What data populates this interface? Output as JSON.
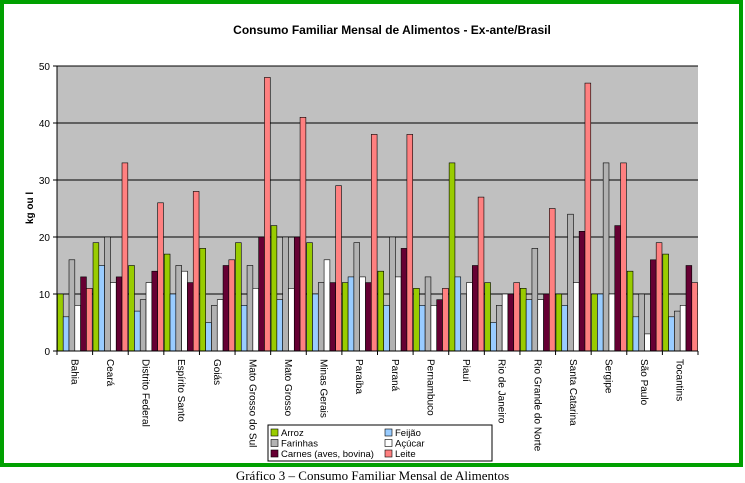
{
  "caption": "Gráfico 3 – Consumo Familiar Mensal de Alimentos",
  "colors": {
    "outer_border": "#00a000",
    "plot_bg": "#c0c0c0",
    "chart_bg": "#ffffff",
    "legend_bg": "#ffffff"
  },
  "chart_data": {
    "type": "bar",
    "title": "Consumo Familiar Mensal de Alimentos - Ex-ante/Brasil",
    "xlabel": "",
    "ylabel": "kg ou l",
    "ylim": [
      0,
      50
    ],
    "yticks": [
      0,
      10,
      20,
      30,
      40,
      50
    ],
    "grid": true,
    "legend_position": "bottom-center",
    "categories": [
      "Bahia",
      "Ceará",
      "Distrito Federal",
      "Espírito Santo",
      "Goiás",
      "Mato Grosso do Sul",
      "Mato Grosso",
      "Minas Gerais",
      "Paraíba",
      "Paraná",
      "Pernambuco",
      "Piauí",
      "Rio de Janeiro",
      "Rio Grande do Norte",
      "Santa Catarina",
      "Sergipe",
      "São Paulo",
      "Tocantins"
    ],
    "series": [
      {
        "name": "Arroz",
        "color": "#99cc00",
        "values": [
          10,
          19,
          15,
          17,
          18,
          19,
          22,
          19,
          12,
          14,
          11,
          33,
          12,
          11,
          10,
          10,
          14,
          17
        ]
      },
      {
        "name": "Feijão",
        "color": "#99ccff",
        "values": [
          6,
          15,
          7,
          10,
          5,
          8,
          9,
          10,
          13,
          8,
          8,
          13,
          5,
          9,
          8,
          10,
          6,
          6
        ]
      },
      {
        "name": "Farinhas",
        "color": "#b2b2b2",
        "values": [
          16,
          20,
          9,
          15,
          8,
          15,
          20,
          12,
          19,
          20,
          13,
          10,
          8,
          18,
          24,
          33,
          10,
          7
        ]
      },
      {
        "name": "Açúcar",
        "color": "#ffffff",
        "values": [
          8,
          12,
          12,
          14,
          9,
          11,
          11,
          16,
          13,
          13,
          8,
          12,
          10,
          9,
          12,
          10,
          3,
          8
        ]
      },
      {
        "name": "Carnes (aves, bovina)",
        "color": "#660033",
        "values": [
          13,
          13,
          14,
          12,
          15,
          20,
          20,
          12,
          12,
          18,
          9,
          15,
          10,
          10,
          21,
          22,
          16,
          15
        ]
      },
      {
        "name": "Leite",
        "color": "#ff8080",
        "values": [
          11,
          33,
          26,
          28,
          16,
          48,
          41,
          29,
          38,
          38,
          11,
          27,
          12,
          25,
          47,
          33,
          19,
          12
        ]
      }
    ]
  }
}
